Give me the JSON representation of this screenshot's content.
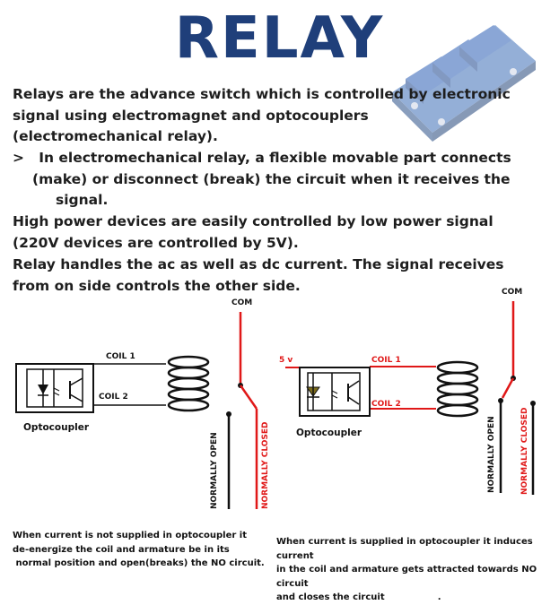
{
  "title": "RELAY",
  "intro": {
    "lines": [
      "Relays are the advance switch which is controlled by electronic",
      "signal using electromagnet and optocouplers",
      "(electromechanical relay)."
    ]
  },
  "bullet": {
    "marker": ">",
    "lines": [
      "In electromechanical relay, a flexible movable part connects",
      "(make) or disconnect (break) the circuit when it receives the",
      "signal."
    ]
  },
  "power_text": {
    "lines": [
      "High power devices are easily controlled by low power signal",
      "(220V devices are controlled by 5V)."
    ]
  },
  "acdc_text": {
    "lines": [
      "Relay handles the ac as well as dc current. The signal receives",
      "from on side controls the other side."
    ]
  },
  "diagram_left": {
    "com_label": "COM",
    "coil1_label": "COIL 1",
    "coil2_label": "COIL 2",
    "optocoupler_label": "Optocoupler",
    "no_label": "NORMALLY OPEN",
    "nc_label": "NORMALLY CLOSED",
    "caption": [
      "When current is not supplied in optocoupler it",
      "de-energize the coil and armature be in its",
      " normal position and open(breaks) the NO circuit."
    ]
  },
  "diagram_right": {
    "com_label": "COM",
    "voltage_label": "5 v",
    "coil1_label": "COIL 1",
    "coil2_label": "COIL 2",
    "optocoupler_label": "Optocoupler",
    "no_label": "NORMALLY OPEN",
    "nc_label": "NORMALLY CLOSED",
    "caption": [
      "When current is supplied in optocoupler it induces current",
      "in the coil and armature gets attracted towards NO circuit",
      "and closes the circuit                 ."
    ]
  },
  "colors": {
    "title": "#1f3f7a",
    "text": "#1e1e1e",
    "red": "#e01818",
    "wire": "#111111",
    "board": "#3d6fb8"
  }
}
